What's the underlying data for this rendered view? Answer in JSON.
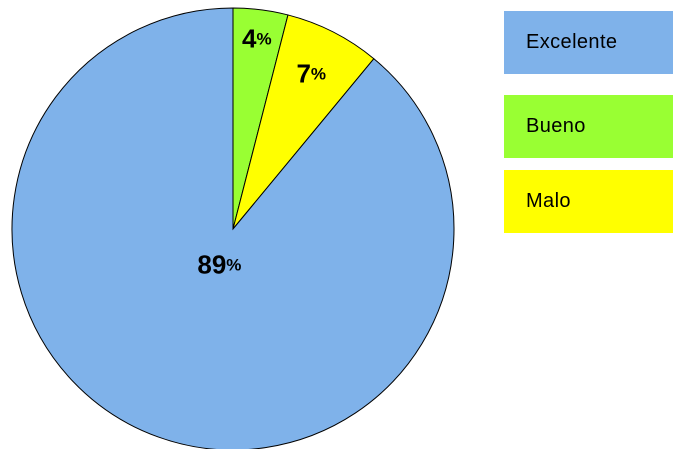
{
  "chart_data": {
    "type": "pie",
    "categories": [
      "Excelente",
      "Bueno",
      "Malo"
    ],
    "values": [
      89,
      4,
      7
    ],
    "unit": "%",
    "colors": [
      "#7FB2EA",
      "#99FF33",
      "#FFFF00"
    ],
    "legend_position": "top-right",
    "slice_order_clockwise_from_top": [
      "Bueno",
      "Malo",
      "Excelente"
    ],
    "data_labels": [
      "89%",
      "4%",
      "7%"
    ]
  },
  "legend": {
    "items": [
      {
        "label": "Excelente",
        "color": "#7FB2EA"
      },
      {
        "label": "Bueno",
        "color": "#99FF33"
      },
      {
        "label": "Malo",
        "color": "#FFFF00"
      }
    ]
  }
}
